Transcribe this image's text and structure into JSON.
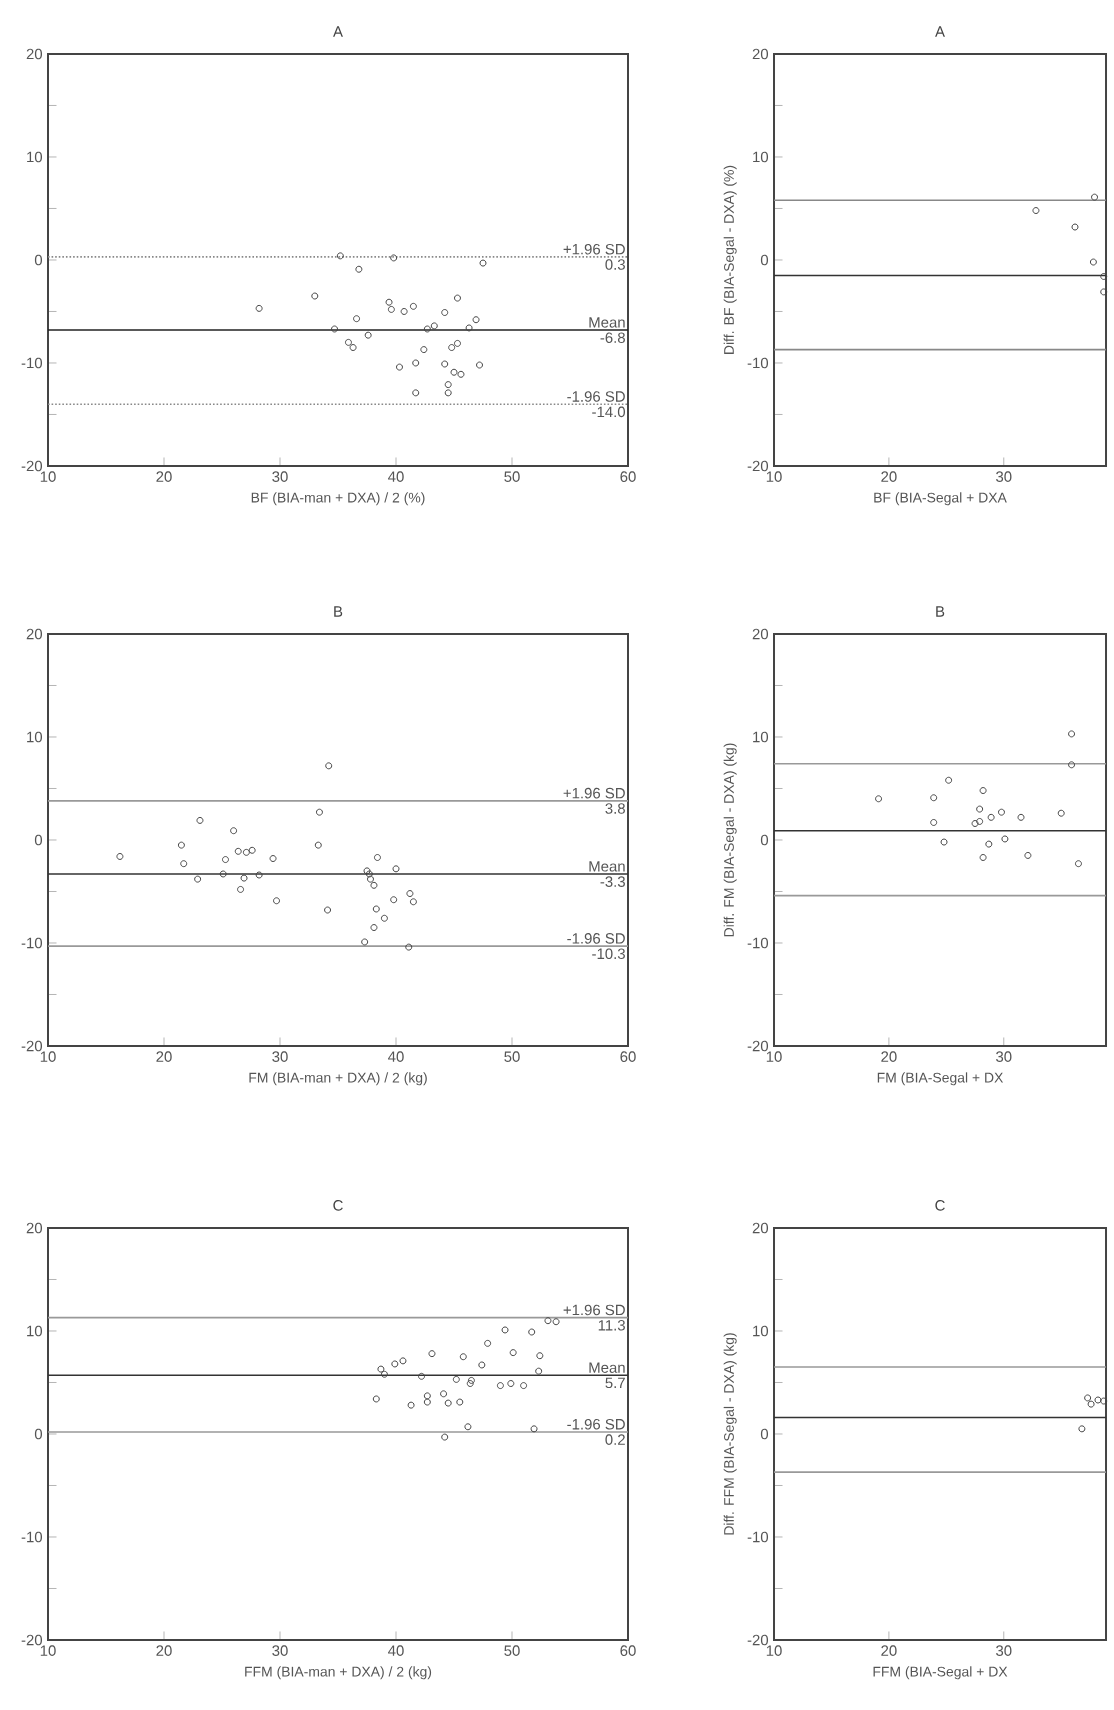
{
  "chart_data": [
    {
      "type": "scatter",
      "title": "A",
      "xlabel": "BF (BIA-man + DXA)  / 2 (%)",
      "marker": "circle",
      "color": "#444444",
      "x": [
        28.2,
        33.0,
        35.2,
        36.8,
        34.7,
        36.6,
        35.9,
        36.3,
        37.6,
        39.8,
        39.4,
        39.6,
        40.7,
        41.5,
        40.3,
        41.7,
        41.7,
        42.4,
        42.7,
        43.3,
        44.2,
        45.3,
        44.2,
        44.5,
        44.5,
        44.8,
        45.3,
        45.0,
        45.6,
        46.3,
        46.9,
        47.2,
        47.5
      ],
      "values": [
        -4.7,
        -3.5,
        0.4,
        -0.9,
        -6.7,
        -5.7,
        -8.0,
        -8.5,
        -7.3,
        0.2,
        -4.1,
        -4.8,
        -5.0,
        -4.5,
        -10.4,
        -10.0,
        -12.9,
        -8.7,
        -6.7,
        -6.4,
        -5.1,
        -3.7,
        -10.1,
        -12.1,
        -12.9,
        -8.5,
        -8.1,
        -10.9,
        -11.1,
        -6.6,
        -5.8,
        -10.2,
        -0.3
      ],
      "xlim": [
        10,
        60
      ],
      "ylim": [
        -20,
        20
      ],
      "xticks": [
        10,
        20,
        30,
        40,
        50,
        60
      ],
      "yticks": [
        -20,
        {
          "value": -15,
          "label": null
        },
        -10,
        {
          "value": -5,
          "label": null
        },
        0,
        {
          "value": 5,
          "label": null
        },
        10,
        {
          "value": 15,
          "label": null
        },
        20
      ],
      "ref_lines": [
        {
          "axis": "y",
          "value": 0.3,
          "label": "+1.96 SD",
          "color": "#888888",
          "line_style": "dotted"
        },
        {
          "axis": "y",
          "value": -6.8,
          "label": "Mean",
          "color": "#222222",
          "line_style": "solid"
        },
        {
          "axis": "y",
          "value": -14.0,
          "label": "-1.96 SD",
          "color": "#888888",
          "line_style": "dotted"
        }
      ],
      "annotations": [
        "0.3",
        "-6.8",
        "-14.0"
      ]
    },
    {
      "type": "scatter",
      "title": "A",
      "xlabel": "BF (BIA-Segal + DXA",
      "ylabel": "Diff. BF (BIA-Segal - DXA) (%)",
      "marker": "circle",
      "color": "#444444",
      "x": [
        32.8,
        36.2,
        37.9,
        37.8,
        38.7,
        38.7
      ],
      "values": [
        4.8,
        3.2,
        6.1,
        -0.2,
        -1.6,
        -3.1
      ],
      "xlim": [
        10,
        38.9
      ],
      "ylim": [
        -20,
        20
      ],
      "xticks": [
        10,
        20,
        30
      ],
      "yticks": [
        -20,
        {
          "value": -15,
          "label": null
        },
        -10,
        {
          "value": -5,
          "label": null
        },
        0,
        {
          "value": 5,
          "label": null
        },
        10,
        {
          "value": 15,
          "label": null
        },
        20
      ],
      "ref_lines": [
        {
          "axis": "y",
          "value": 5.8,
          "color": "#888888",
          "line_style": "solid"
        },
        {
          "axis": "y",
          "value": -1.5,
          "color": "#333333",
          "line_style": "solid"
        },
        {
          "axis": "y",
          "value": -8.7,
          "color": "#888888",
          "line_style": "solid"
        }
      ]
    },
    {
      "type": "scatter",
      "title": "B",
      "xlabel": "FM (BIA-man + DXA) / 2 (kg)",
      "marker": "circle",
      "color": "#444444",
      "x": [
        16.2,
        21.5,
        21.7,
        23.1,
        22.9,
        25.3,
        25.1,
        26.0,
        26.4,
        27.1,
        27.6,
        26.6,
        26.9,
        28.2,
        29.4,
        29.7,
        33.3,
        33.4,
        34.2,
        34.1,
        37.3,
        37.5,
        37.7,
        37.8,
        38.1,
        38.4,
        38.3,
        38.1,
        39.0,
        39.8,
        40.0,
        41.2,
        41.5,
        41.1
      ],
      "values": [
        -1.6,
        -0.5,
        -2.3,
        1.9,
        -3.8,
        -1.9,
        -3.3,
        0.9,
        -1.1,
        -1.2,
        -1.0,
        -4.8,
        -3.7,
        -3.4,
        -1.8,
        -5.9,
        -0.5,
        2.7,
        7.2,
        -6.8,
        -9.9,
        -3.0,
        -3.3,
        -3.8,
        -4.4,
        -1.7,
        -6.7,
        -8.5,
        -7.6,
        -5.8,
        -2.8,
        -5.2,
        -6.0,
        -10.4
      ],
      "xlim": [
        10,
        60
      ],
      "ylim": [
        -20,
        20
      ],
      "xticks": [
        10,
        20,
        30,
        40,
        50,
        60
      ],
      "yticks": [
        -20,
        {
          "value": -15,
          "label": null
        },
        -10,
        {
          "value": -5,
          "label": null
        },
        0,
        {
          "value": 5,
          "label": null
        },
        10,
        {
          "value": 15,
          "label": null
        },
        20
      ],
      "ref_lines": [
        {
          "axis": "y",
          "value": 3.8,
          "label": "+1.96 SD",
          "color": "#999999",
          "line_style": "solid"
        },
        {
          "axis": "y",
          "value": -3.3,
          "label": "Mean",
          "color": "#333333",
          "line_style": "solid"
        },
        {
          "axis": "y",
          "value": -10.3,
          "label": "-1.96 SD",
          "color": "#999999",
          "line_style": "solid"
        }
      ],
      "annotations": [
        "3.8",
        "-3.3",
        "-10.3"
      ]
    },
    {
      "type": "scatter",
      "title": "B",
      "xlabel": "FM (BIA-Segal + DX",
      "ylabel": "Diff. FM (BIA-Segal - DXA) (kg)",
      "marker": "circle",
      "color": "#444444",
      "x": [
        19.1,
        23.9,
        23.9,
        25.2,
        24.8,
        27.5,
        27.9,
        27.9,
        28.2,
        28.2,
        28.7,
        28.9,
        29.8,
        30.1,
        31.5,
        32.1,
        35.0,
        35.9,
        35.9,
        36.5
      ],
      "values": [
        4.0,
        4.1,
        1.7,
        5.8,
        -0.2,
        1.6,
        1.8,
        3.0,
        4.8,
        -1.7,
        -0.4,
        2.2,
        2.7,
        0.1,
        2.2,
        -1.5,
        2.6,
        10.3,
        7.3,
        -2.3
      ],
      "xlim": [
        10,
        38.9
      ],
      "ylim": [
        -20,
        20
      ],
      "xticks": [
        10,
        20,
        30
      ],
      "yticks": [
        -20,
        {
          "value": -15,
          "label": null
        },
        -10,
        {
          "value": -5,
          "label": null
        },
        0,
        {
          "value": 5,
          "label": null
        },
        10,
        {
          "value": 15,
          "label": null
        },
        20
      ],
      "ref_lines": [
        {
          "axis": "y",
          "value": 7.4,
          "color": "#999999",
          "line_style": "solid"
        },
        {
          "axis": "y",
          "value": 0.9,
          "color": "#333333",
          "line_style": "solid"
        },
        {
          "axis": "y",
          "value": -5.4,
          "color": "#999999",
          "line_style": "solid"
        }
      ]
    },
    {
      "type": "scatter",
      "title": "C",
      "xlabel": "FFM (BIA-man + DXA) / 2 (kg)",
      "marker": "circle",
      "color": "#444444",
      "x": [
        38.3,
        38.7,
        39.0,
        39.9,
        40.6,
        41.3,
        42.2,
        42.7,
        42.7,
        43.1,
        44.1,
        44.2,
        44.5,
        45.2,
        45.5,
        45.8,
        46.4,
        46.5,
        46.2,
        47.4,
        47.9,
        49.4,
        49.0,
        49.9,
        50.1,
        51.0,
        51.7,
        51.9,
        52.3,
        52.4,
        53.1,
        53.8
      ],
      "values": [
        3.4,
        6.3,
        5.8,
        6.8,
        7.1,
        2.8,
        5.6,
        3.7,
        3.1,
        7.8,
        3.9,
        -0.3,
        3.0,
        5.3,
        3.1,
        7.5,
        4.9,
        5.2,
        0.7,
        6.7,
        8.8,
        10.1,
        4.7,
        4.9,
        7.9,
        4.7,
        9.9,
        0.5,
        6.1,
        7.6,
        11.0,
        10.9
      ],
      "xlim": [
        10,
        60
      ],
      "ylim": [
        -20,
        20
      ],
      "xticks": [
        10,
        20,
        30,
        40,
        50,
        60
      ],
      "yticks": [
        -20,
        {
          "value": -15,
          "label": null
        },
        -10,
        {
          "value": -5,
          "label": null
        },
        0,
        {
          "value": 5,
          "label": null
        },
        10,
        {
          "value": 15,
          "label": null
        },
        20
      ],
      "ref_lines": [
        {
          "axis": "y",
          "value": 11.3,
          "label": "+1.96 SD",
          "color": "#999999",
          "line_style": "solid"
        },
        {
          "axis": "y",
          "value": 5.7,
          "label": "Mean",
          "color": "#333333",
          "line_style": "solid"
        },
        {
          "axis": "y",
          "value": 0.2,
          "label": "-1.96 SD",
          "color": "#999999",
          "line_style": "solid"
        }
      ],
      "annotations": [
        "11.3",
        "5.7",
        "0.2"
      ]
    },
    {
      "type": "scatter",
      "title": "C",
      "xlabel": "FFM (BIA-Segal + DX",
      "ylabel": "Diff. FFM (BIA-Segal - DXA) (kg)",
      "marker": "circle",
      "color": "#444444",
      "x": [
        36.8,
        37.3,
        37.6,
        38.2,
        38.7
      ],
      "values": [
        0.5,
        3.5,
        2.9,
        3.3,
        3.2
      ],
      "xlim": [
        10,
        38.9
      ],
      "ylim": [
        -20,
        20
      ],
      "xticks": [
        10,
        20,
        30
      ],
      "yticks": [
        -20,
        {
          "value": -15,
          "label": null
        },
        -10,
        {
          "value": -5,
          "label": null
        },
        0,
        {
          "value": 5,
          "label": null
        },
        10,
        {
          "value": 15,
          "label": null
        },
        20
      ],
      "ref_lines": [
        {
          "axis": "y",
          "value": 6.5,
          "color": "#999999",
          "line_style": "solid"
        },
        {
          "axis": "y",
          "value": 1.6,
          "color": "#333333",
          "line_style": "solid"
        },
        {
          "axis": "y",
          "value": -3.7,
          "color": "#999999",
          "line_style": "solid"
        }
      ]
    }
  ]
}
